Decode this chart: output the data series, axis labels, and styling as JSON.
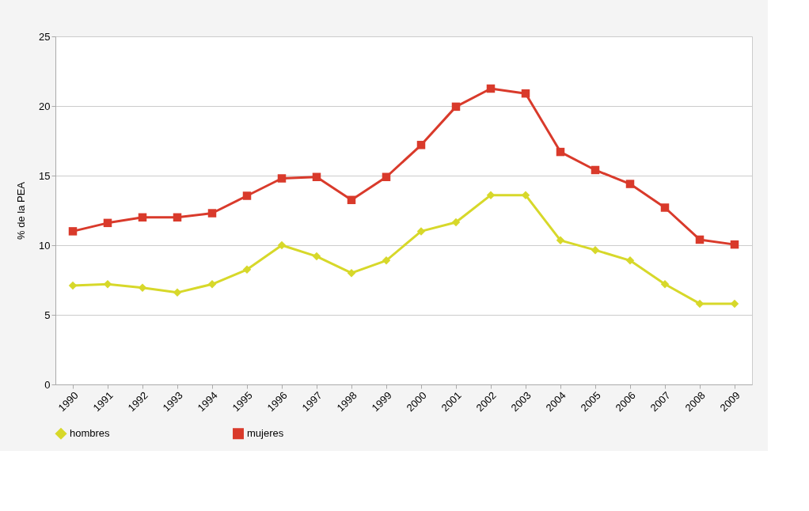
{
  "chart_data": {
    "type": "line",
    "ylabel": "% de la PEA",
    "categories": [
      "1990",
      "1991",
      "1992",
      "1993",
      "1994",
      "1995",
      "1996",
      "1997",
      "1998",
      "1999",
      "2000",
      "2001",
      "2002",
      "2003",
      "2004",
      "2005",
      "2006",
      "2007",
      "2008",
      "2009"
    ],
    "series": [
      {
        "name": "hombres",
        "color": "#d7d82a",
        "marker": "diamond",
        "values": [
          7.1,
          7.2,
          6.95,
          6.6,
          7.2,
          8.25,
          10.0,
          9.2,
          8.0,
          8.9,
          11.0,
          11.65,
          13.6,
          13.6,
          10.35,
          9.65,
          8.9,
          7.2,
          5.8,
          5.8
        ]
      },
      {
        "name": "mujeres",
        "color": "#d93a2b",
        "marker": "square",
        "values": [
          11.0,
          11.6,
          12.0,
          12.0,
          12.3,
          13.55,
          14.8,
          14.9,
          13.25,
          14.9,
          17.2,
          19.95,
          21.25,
          20.9,
          16.7,
          15.4,
          14.4,
          12.7,
          10.4,
          10.05
        ]
      }
    ],
    "ylim": [
      0,
      25
    ],
    "yticks": [
      0,
      5,
      10,
      15,
      20,
      25
    ],
    "grid": "y",
    "legend": "bottom",
    "line_style": "solid"
  }
}
